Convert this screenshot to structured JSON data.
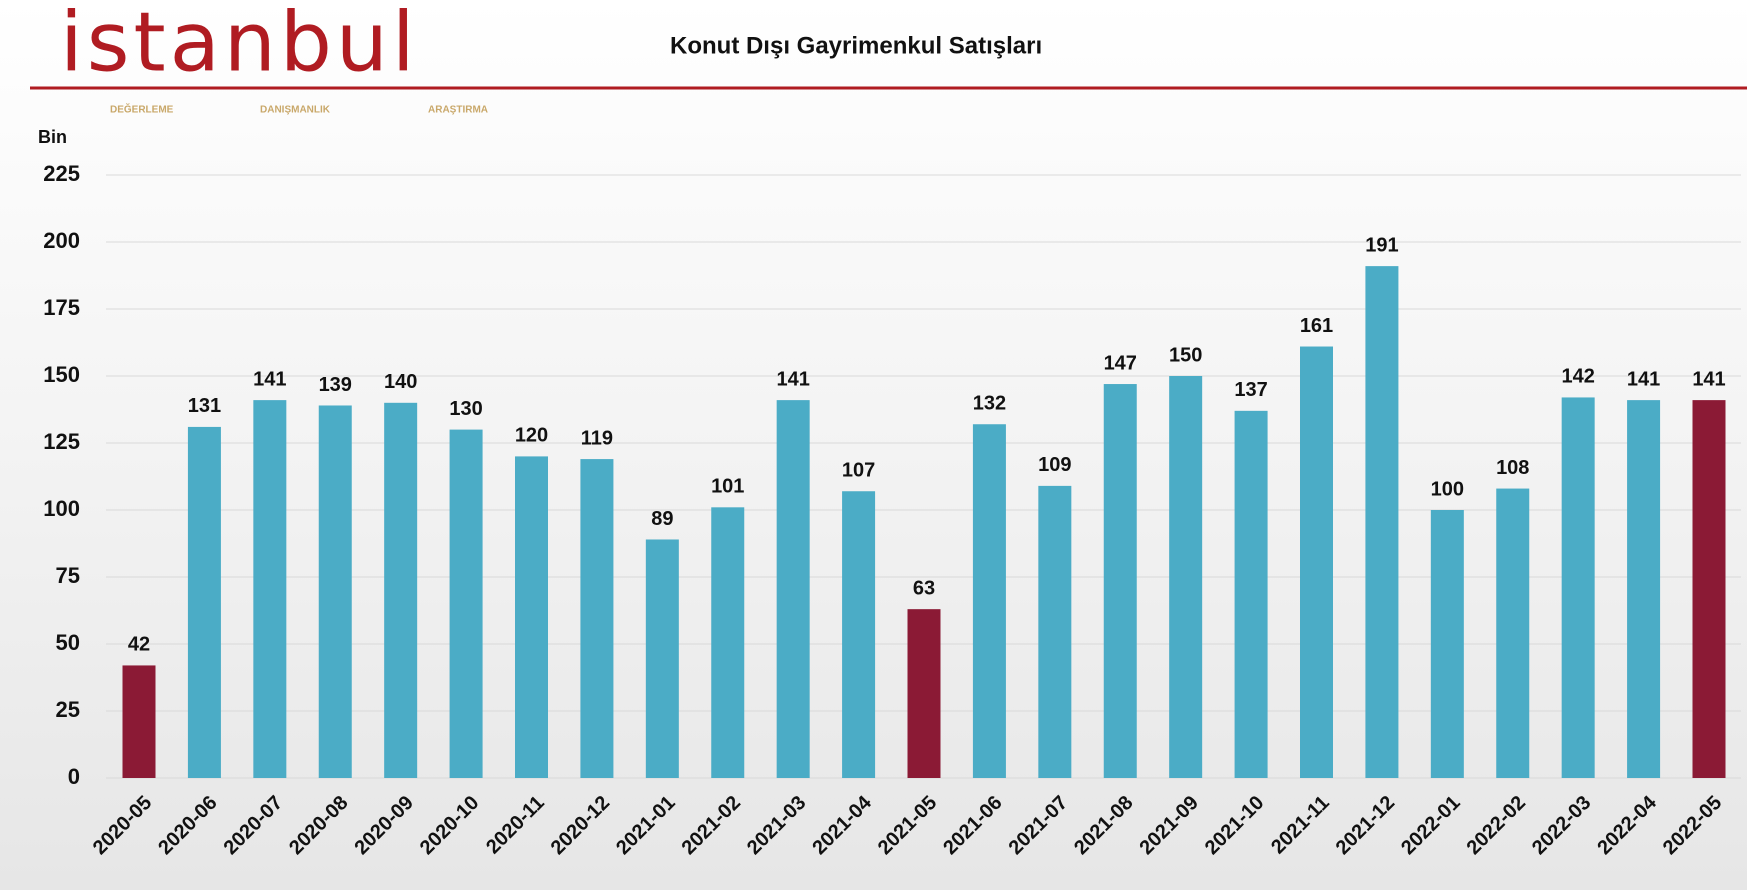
{
  "logo": {
    "name": "istanbul",
    "tagline": [
      "DEĞERLEME",
      "DANIŞMANLIK",
      "ARAŞTIRMA"
    ]
  },
  "chart_data": {
    "type": "bar",
    "title": "Konut Dışı Gayrimenkul Satışları",
    "y_label": "Bin",
    "categories": [
      "2020-05",
      "2020-06",
      "2020-07",
      "2020-08",
      "2020-09",
      "2020-10",
      "2020-11",
      "2020-12",
      "2021-01",
      "2021-02",
      "2021-03",
      "2021-04",
      "2021-05",
      "2021-06",
      "2021-07",
      "2021-08",
      "2021-09",
      "2021-10",
      "2021-11",
      "2021-12",
      "2022-01",
      "2022-02",
      "2022-03",
      "2022-04",
      "2022-05"
    ],
    "values": [
      42,
      131,
      141,
      139,
      140,
      130,
      120,
      119,
      89,
      101,
      141,
      107,
      63,
      132,
      109,
      147,
      150,
      137,
      161,
      191,
      100,
      108,
      142,
      141,
      141
    ],
    "colors": [
      "#8b1a35",
      "#4bacc6",
      "#4bacc6",
      "#4bacc6",
      "#4bacc6",
      "#4bacc6",
      "#4bacc6",
      "#4bacc6",
      "#4bacc6",
      "#4bacc6",
      "#4bacc6",
      "#4bacc6",
      "#8b1a35",
      "#4bacc6",
      "#4bacc6",
      "#4bacc6",
      "#4bacc6",
      "#4bacc6",
      "#4bacc6",
      "#4bacc6",
      "#4bacc6",
      "#4bacc6",
      "#4bacc6",
      "#4bacc6",
      "#8b1a35"
    ],
    "ylim": [
      0,
      225
    ],
    "yticks": [
      0,
      25,
      50,
      75,
      100,
      125,
      150,
      175,
      200,
      225
    ],
    "grid": true
  }
}
